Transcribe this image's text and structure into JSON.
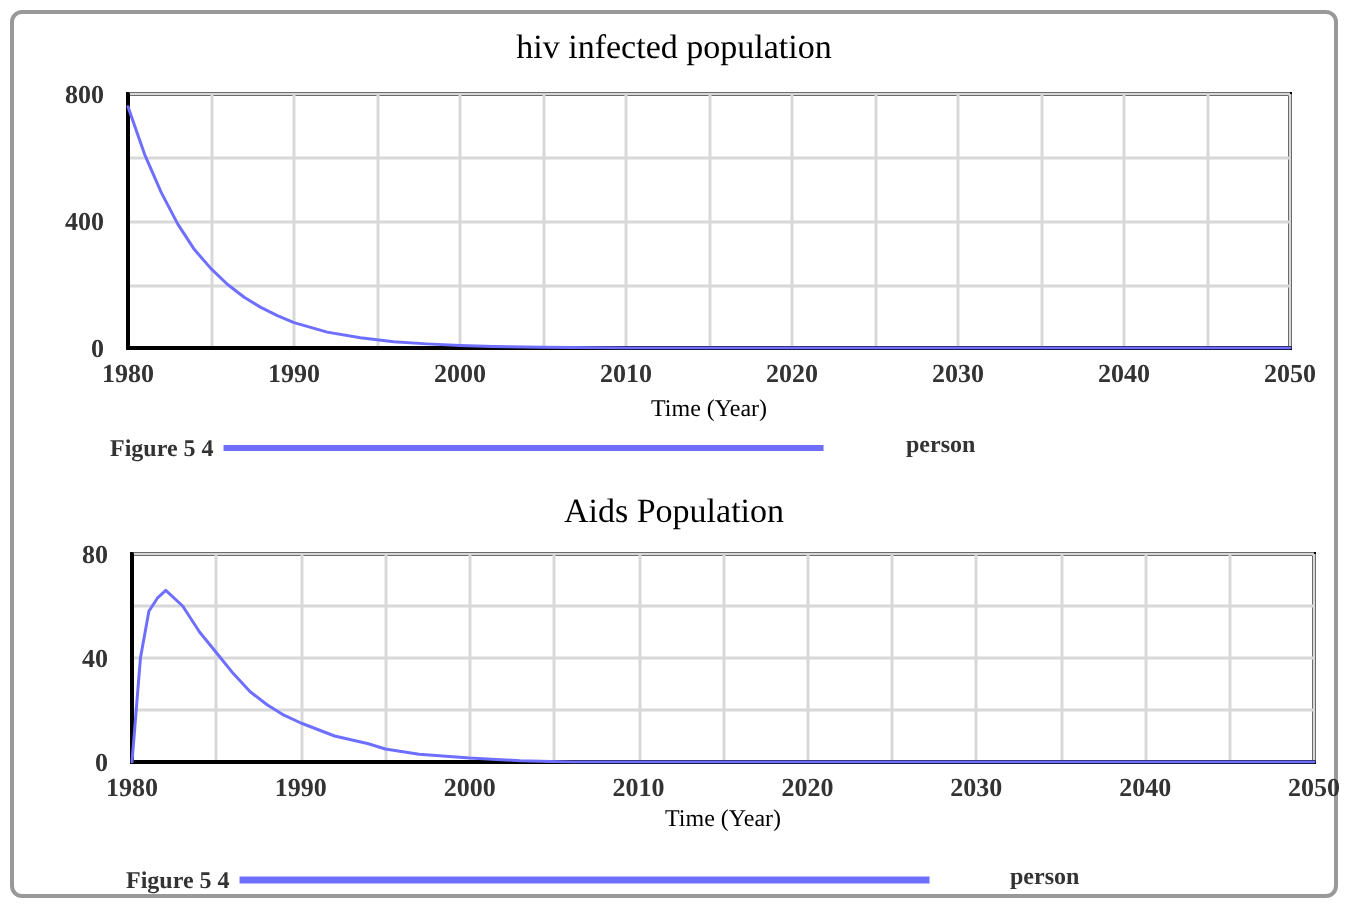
{
  "chart_data": [
    {
      "type": "line",
      "title": "hiv infected population",
      "xlabel": "Time (Year)",
      "annotations": [
        "person"
      ],
      "series": [
        {
          "name": "Figure 5 4",
          "color": "#6f6fff",
          "x": [
            1980,
            1981,
            1982,
            1983,
            1984,
            1985,
            1986,
            1987,
            1988,
            1989,
            1990,
            1992,
            1994,
            1996,
            1998,
            2000,
            2002,
            2005,
            2010,
            2050
          ],
          "values": [
            760,
            610,
            490,
            390,
            310,
            250,
            200,
            160,
            128,
            102,
            80,
            50,
            32,
            20,
            13,
            8,
            5,
            2,
            0,
            0
          ]
        }
      ],
      "xlim": [
        1980,
        2050
      ],
      "xticks": [
        1980,
        {
          "value": 1985,
          "label": null
        },
        1990,
        {
          "value": 1995,
          "label": null
        },
        2000,
        {
          "value": 2005,
          "label": null
        },
        2010,
        {
          "value": 2015,
          "label": null
        },
        2020,
        {
          "value": 2025,
          "label": null
        },
        2030,
        {
          "value": 2035,
          "label": null
        },
        2040,
        {
          "value": 2045,
          "label": null
        },
        2050
      ],
      "ylim": [
        0,
        800
      ],
      "yticks": [
        0,
        {
          "value": 200,
          "label": null
        },
        400,
        {
          "value": 600,
          "label": null
        },
        800
      ],
      "grid": true,
      "legend": "bottom",
      "marker": "none",
      "line_style": "solid"
    },
    {
      "type": "line",
      "title": "Aids Population",
      "xlabel": "Time (Year)",
      "annotations": [
        "person"
      ],
      "series": [
        {
          "name": "Figure 5 4",
          "color": "#6f6fff",
          "x": [
            1980,
            1980.5,
            1981,
            1981.5,
            1982,
            1983,
            1984,
            1985,
            1986,
            1987,
            1988,
            1989,
            1990,
            1992,
            1994,
            1995,
            1997,
            2000,
            2003,
            2006,
            2010,
            2050
          ],
          "values": [
            0,
            40,
            58,
            63,
            66,
            60,
            50,
            42,
            34,
            27,
            22,
            18,
            15,
            10,
            7,
            5,
            3,
            1.5,
            0.5,
            0,
            0,
            0
          ]
        }
      ],
      "xlim": [
        1980,
        2050
      ],
      "xticks": [
        1980,
        {
          "value": 1985,
          "label": null
        },
        1990,
        {
          "value": 1995,
          "label": null
        },
        2000,
        {
          "value": 2005,
          "label": null
        },
        2010,
        {
          "value": 2015,
          "label": null
        },
        2020,
        {
          "value": 2025,
          "label": null
        },
        2030,
        {
          "value": 2035,
          "label": null
        },
        2040,
        {
          "value": 2045,
          "label": null
        },
        2050
      ],
      "ylim": [
        0,
        80
      ],
      "yticks": [
        0,
        {
          "value": 20,
          "label": null
        },
        40,
        {
          "value": 60,
          "label": null
        },
        80
      ],
      "grid": true,
      "legend": "bottom",
      "marker": "none",
      "line_style": "solid"
    }
  ]
}
